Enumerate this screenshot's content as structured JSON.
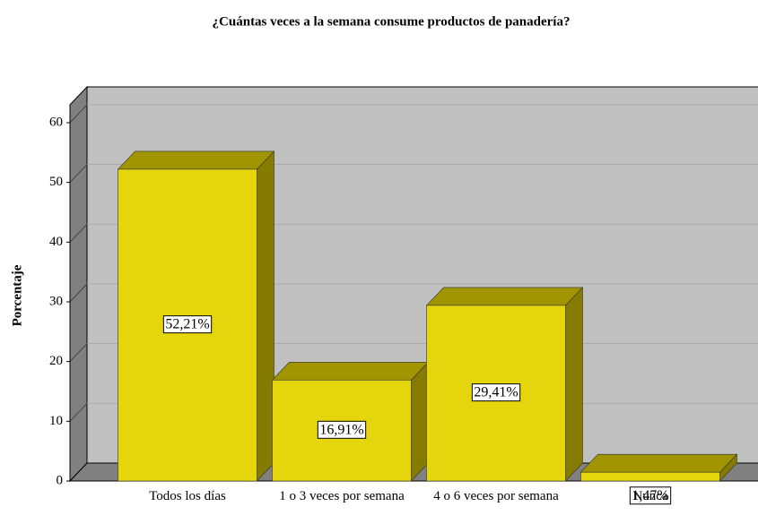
{
  "chart_data": {
    "type": "bar3d",
    "title": "¿Cuántas veces a la semana consume productos de panadería?",
    "y_label": "Porcentaje",
    "categories": [
      "Todos los días",
      "1 o 3 veces por semana",
      "4 o 6 veces por semana",
      "Nunca"
    ],
    "values": [
      52.21,
      16.91,
      29.41,
      1.47
    ],
    "value_labels": [
      "52,21%",
      "16,91%",
      "29,41%",
      "1,47%"
    ],
    "color": "#e5d50c",
    "ylim": [
      0,
      63
    ],
    "yticks": [
      0,
      10,
      20,
      30,
      40,
      50,
      60
    ],
    "grid": true
  }
}
